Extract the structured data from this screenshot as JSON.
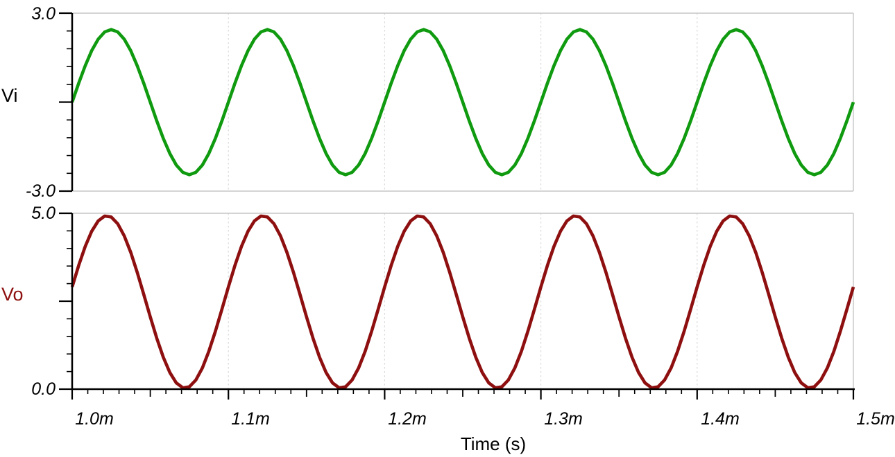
{
  "figure": {
    "background": "#ffffff",
    "x_axis": {
      "label": "Time (s)",
      "tick_labels": [
        "1.0m",
        "1.1m",
        "1.2m",
        "1.3m",
        "1.4m",
        "1.5m"
      ],
      "tick_values_ms": [
        1.0,
        1.1,
        1.2,
        1.3,
        1.4,
        1.5
      ],
      "minor_divisions_per_major": 10,
      "range_seconds": [
        0.001,
        0.0015
      ]
    },
    "colors": {
      "vi_trace": "#0f9a0f",
      "vo_trace": "#8e0f0f",
      "axis": "#000000",
      "solid_grid": "#c6c6c6",
      "dashed_grid": "#d9d9d9"
    }
  },
  "chart_data": [
    {
      "type": "line",
      "panel": "top",
      "ylabel": "Vi",
      "ylabel_color": "#000000",
      "ylim": [
        -3.0,
        3.0
      ],
      "ytick_labels": [
        "3.0",
        "-3.0"
      ],
      "y_major_tick_values": [
        3.0,
        0.0,
        -3.0
      ],
      "y_minor_divisions": 10,
      "x_range_ms": [
        1.0,
        1.5
      ],
      "grid": {
        "vertical_dashed_at_ms": [
          1.1,
          1.2,
          1.3,
          1.4
        ],
        "horizontal_solid_at": [
          3.0,
          -3.0
        ]
      },
      "series": [
        {
          "name": "Vi",
          "color": "#0f9a0f",
          "waveform": {
            "shape": "sine",
            "amplitude_V": 2.45,
            "dc_offset_V": 0.0,
            "frequency_Hz": 10000,
            "phase_deg": 0,
            "cycles_shown": 5
          },
          "one_period_samples_ms_V": [
            [
              1.0,
              0.0
            ],
            [
              1.0125,
              1.73
            ],
            [
              1.025,
              2.45
            ],
            [
              1.0375,
              1.73
            ],
            [
              1.05,
              0.0
            ],
            [
              1.0625,
              -1.73
            ],
            [
              1.075,
              -2.45
            ],
            [
              1.0875,
              -1.73
            ],
            [
              1.1,
              0.0
            ]
          ],
          "key_points": {
            "start_V": 0.0,
            "peak_V": 2.45,
            "trough_V": -2.45,
            "end_V": 0.0,
            "first_peak_ms": 1.025,
            "first_trough_ms": 1.075
          }
        }
      ]
    },
    {
      "type": "line",
      "panel": "bottom",
      "ylabel": "Vo",
      "ylabel_color": "#8e0f0f",
      "ylim": [
        0.0,
        5.0
      ],
      "ytick_labels": [
        "5.0",
        "0.0"
      ],
      "y_major_tick_values": [
        5.0,
        2.5,
        0.0
      ],
      "y_minor_divisions": 10,
      "x_range_ms": [
        1.0,
        1.5
      ],
      "grid": {
        "vertical_dashed_at_ms": [
          1.1,
          1.2,
          1.3,
          1.4
        ],
        "horizontal_solid_at": [
          5.0
        ]
      },
      "series": [
        {
          "name": "Vo",
          "color": "#8e0f0f",
          "waveform": {
            "shape": "sine",
            "amplitude_V": 2.45,
            "dc_offset_V": 2.48,
            "frequency_Hz": 10000,
            "phase_deg": 10,
            "cycles_shown": 5
          },
          "one_period_samples_ms_V": [
            [
              1.0,
              2.91
            ],
            [
              1.0125,
              4.49
            ],
            [
              1.0222,
              4.93
            ],
            [
              1.0375,
              3.89
            ],
            [
              1.05,
              2.05
            ],
            [
              1.0625,
              0.47
            ],
            [
              1.0722,
              0.03
            ],
            [
              1.0875,
              1.07
            ],
            [
              1.1,
              2.91
            ]
          ],
          "key_points": {
            "start_V": 2.91,
            "peak_V": 4.93,
            "trough_V": 0.03,
            "end_V": 2.91,
            "first_peak_ms": 1.0222,
            "first_trough_ms": 1.0722
          }
        }
      ]
    }
  ]
}
